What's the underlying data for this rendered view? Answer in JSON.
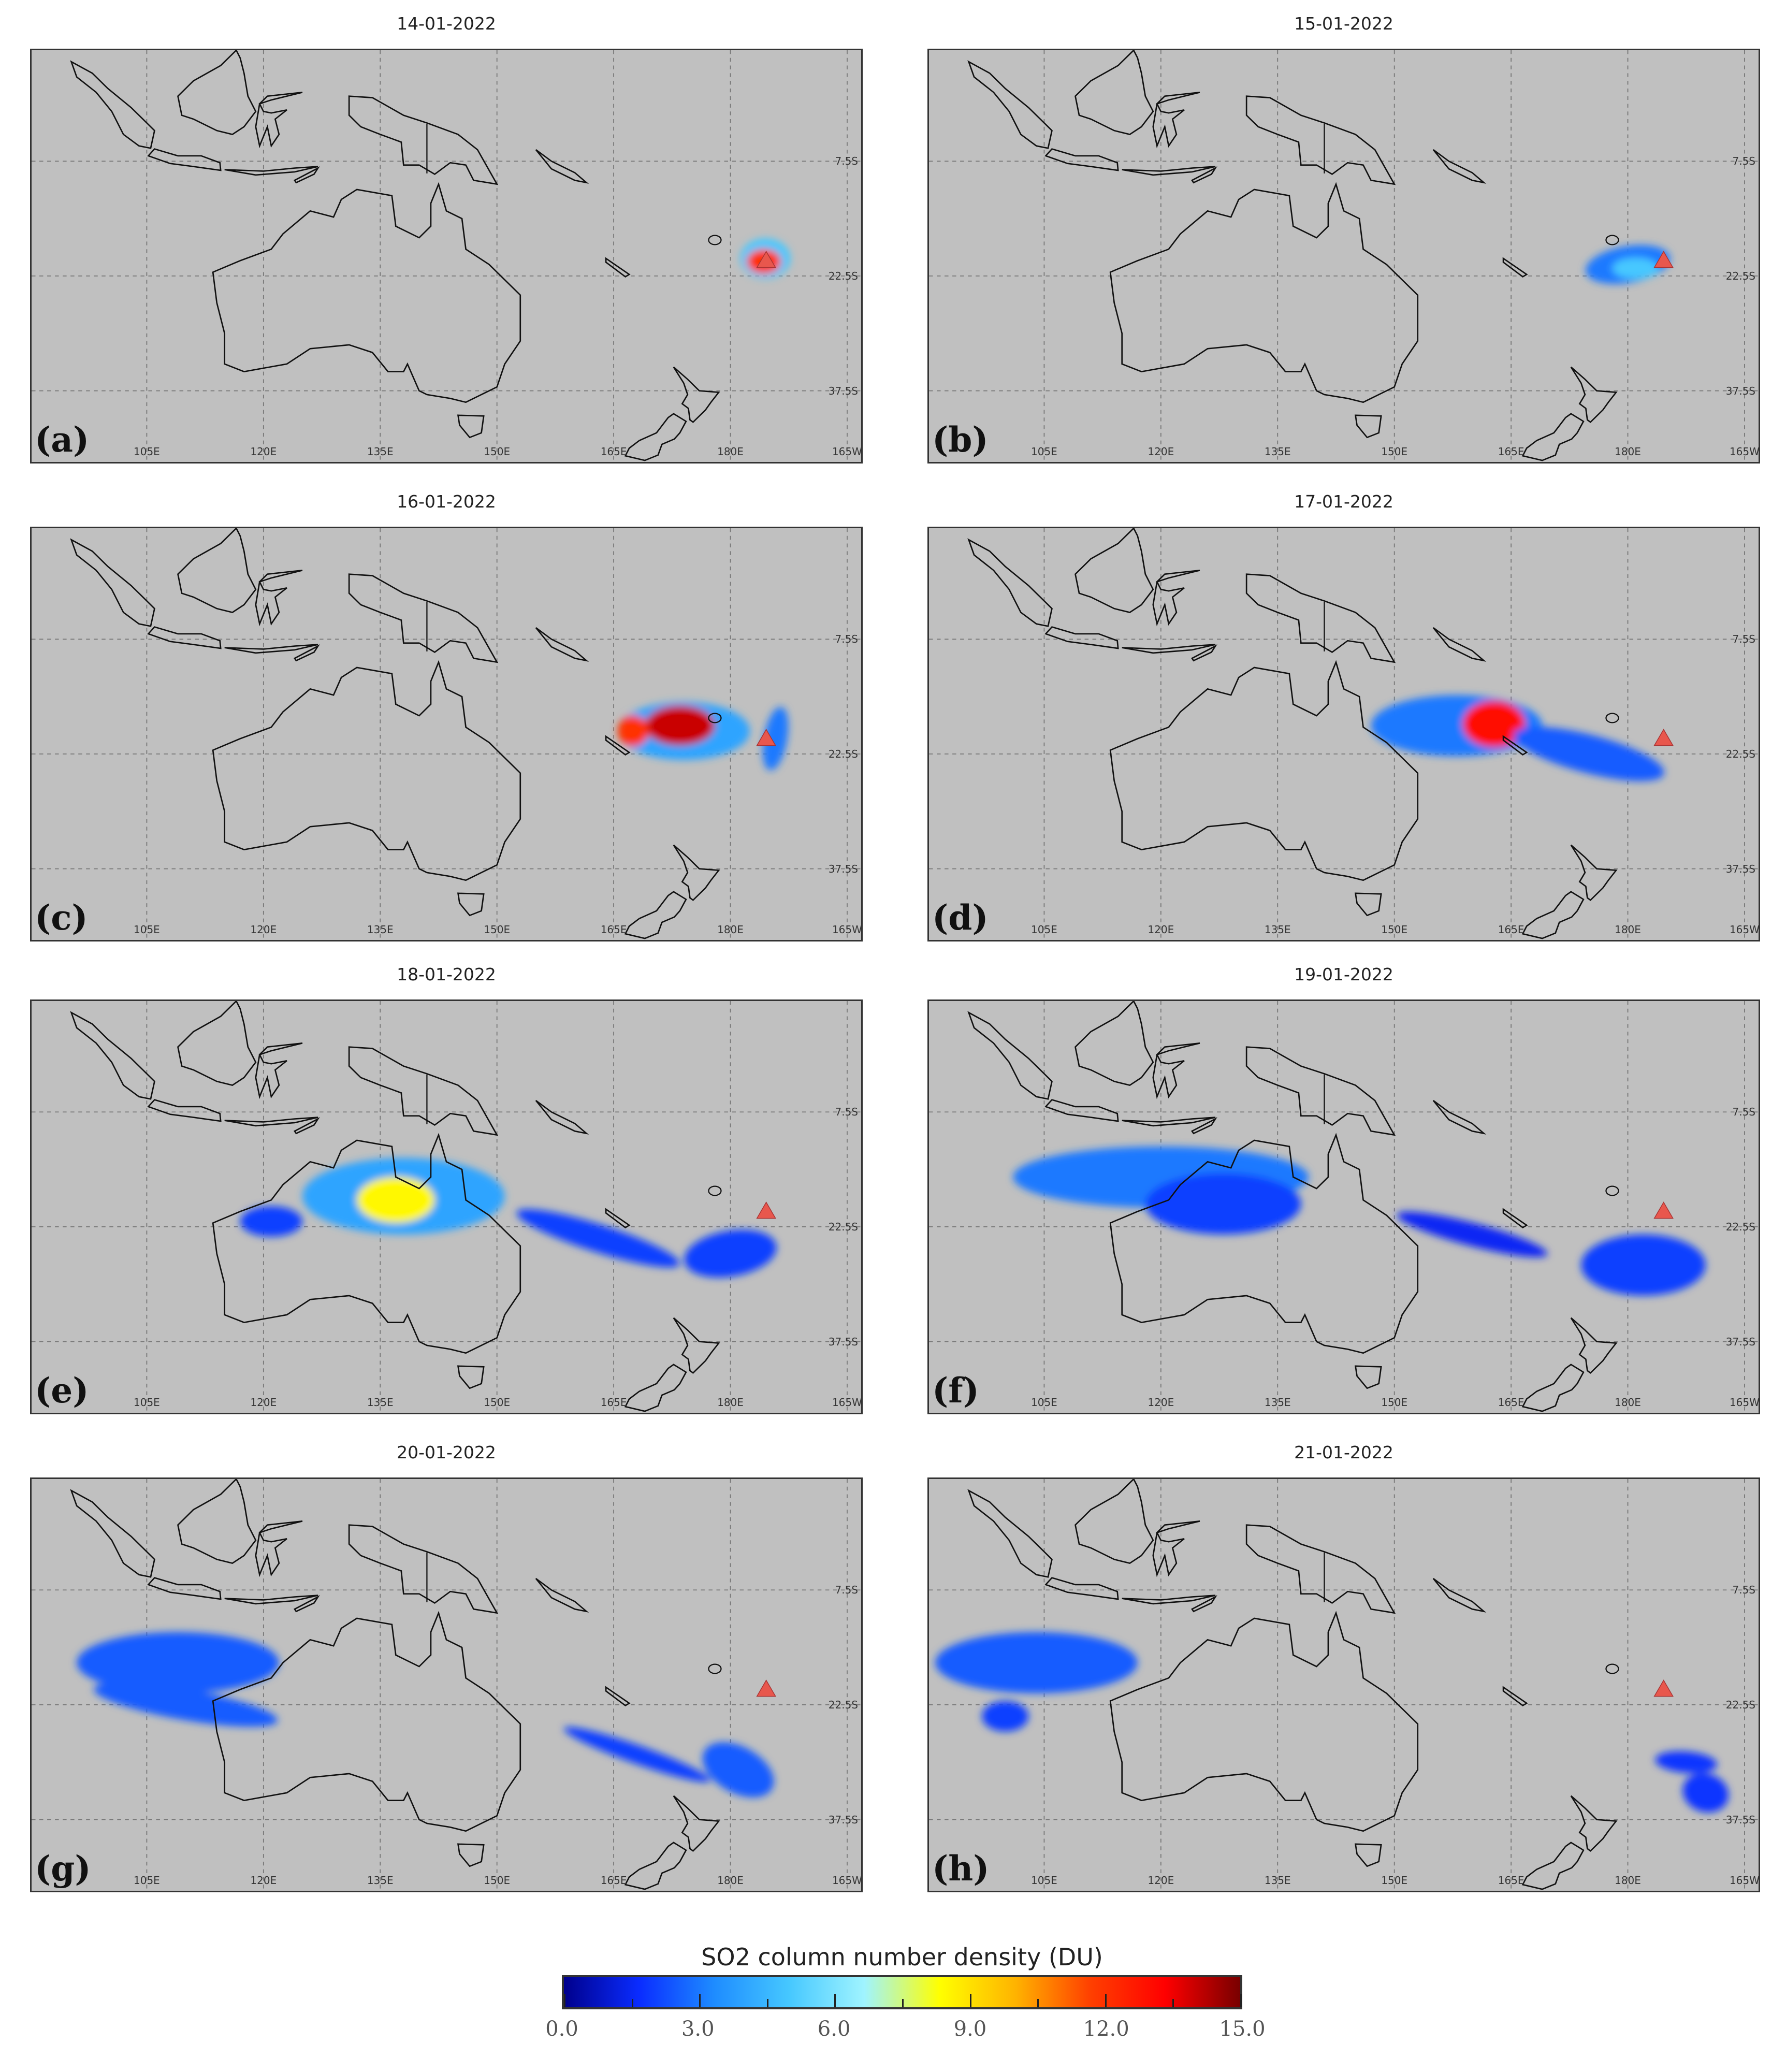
{
  "map": {
    "lon_ticks": [
      {
        "value": 105,
        "label": "105E"
      },
      {
        "value": 120,
        "label": "120E"
      },
      {
        "value": 135,
        "label": "135E"
      },
      {
        "value": 150,
        "label": "150E"
      },
      {
        "value": 165,
        "label": "165E"
      },
      {
        "value": 180,
        "label": "180E"
      },
      {
        "value": 195,
        "label": "165W"
      }
    ],
    "lat_ticks": [
      {
        "value": 7.5,
        "label": "7.5S"
      },
      {
        "value": 22.5,
        "label": "22.5S"
      },
      {
        "value": 37.5,
        "label": "37.5S"
      }
    ],
    "volcano": {
      "lon": 184.6,
      "lat_s": 20.5,
      "color": "#e8574d"
    },
    "background_color": "#c0c0c0"
  },
  "panels": [
    {
      "date": "14-01-2022",
      "label": "(a)",
      "plumes": [
        [
          184.5,
          20.2,
          3.2,
          2.6,
          0,
          5
        ],
        [
          184.3,
          20.6,
          2.2,
          1.6,
          0,
          12
        ]
      ]
    },
    {
      "date": "15-01-2022",
      "label": "(b)",
      "plumes": [
        [
          180,
          21,
          5.5,
          2.4,
          -10,
          3
        ],
        [
          181,
          21.5,
          3,
          1.4,
          0,
          5
        ]
      ]
    },
    {
      "date": "16-01-2022",
      "label": "(c)",
      "plumes": [
        [
          174,
          19.5,
          8.5,
          3.8,
          0,
          4
        ],
        [
          173.5,
          18.8,
          4.5,
          2.6,
          0,
          14
        ],
        [
          167.5,
          19.5,
          2,
          2,
          0,
          12
        ],
        [
          185.8,
          20.5,
          1.5,
          4.2,
          10,
          3
        ]
      ]
    },
    {
      "date": "17-01-2022",
      "label": "(d)",
      "plumes": [
        [
          158,
          18.8,
          11,
          4,
          0,
          3
        ],
        [
          162.8,
          18.6,
          4,
          3,
          0,
          13
        ],
        [
          175,
          22.5,
          10,
          2.5,
          15,
          2.5
        ]
      ]
    },
    {
      "date": "18-01-2022",
      "label": "(e)",
      "plumes": [
        [
          138,
          18.5,
          13,
          5,
          0,
          4
        ],
        [
          137,
          19,
          5,
          3,
          0,
          8.5
        ],
        [
          121,
          21.8,
          4,
          2,
          0,
          2
        ],
        [
          163,
          24,
          11,
          1.8,
          18,
          2
        ],
        [
          180,
          26,
          6,
          3,
          -10,
          2
        ]
      ]
    },
    {
      "date": "19-01-2022",
      "label": "(f)",
      "plumes": [
        [
          120,
          16,
          19,
          4,
          0,
          3
        ],
        [
          128,
          19.5,
          10,
          4,
          0,
          2
        ],
        [
          160,
          23.5,
          10,
          1.5,
          15,
          1.5
        ],
        [
          182,
          27.5,
          8,
          4,
          0,
          2
        ]
      ]
    },
    {
      "date": "20-01-2022",
      "label": "(g)",
      "plumes": [
        [
          109,
          17,
          13,
          4,
          0,
          2.5
        ],
        [
          110,
          22.5,
          12,
          2,
          10,
          2.5
        ],
        [
          168,
          29,
          10,
          1.2,
          20,
          2
        ],
        [
          181,
          31,
          5,
          3,
          30,
          2.5
        ]
      ]
    },
    {
      "date": "21-01-2022",
      "label": "(h)",
      "plumes": [
        [
          104,
          17,
          13,
          4,
          0,
          2.5
        ],
        [
          100,
          24,
          3,
          2,
          0,
          2
        ],
        [
          187.5,
          30,
          4,
          1.4,
          5,
          1.8
        ],
        [
          190,
          34,
          3,
          2.5,
          20,
          1.8
        ]
      ]
    }
  ],
  "colorbar": {
    "title": "SO2 column number density (DU)",
    "min": 0,
    "max": 15,
    "tick_labels": [
      "0.0",
      "3.0",
      "6.0",
      "9.0",
      "12.0",
      "15.0"
    ],
    "colors": [
      "#00008c",
      "#0a2cff",
      "#1e8cff",
      "#46c8ff",
      "#a0f4ff",
      "#ffff00",
      "#ffb400",
      "#ff4000",
      "#ff0000",
      "#780000"
    ]
  }
}
